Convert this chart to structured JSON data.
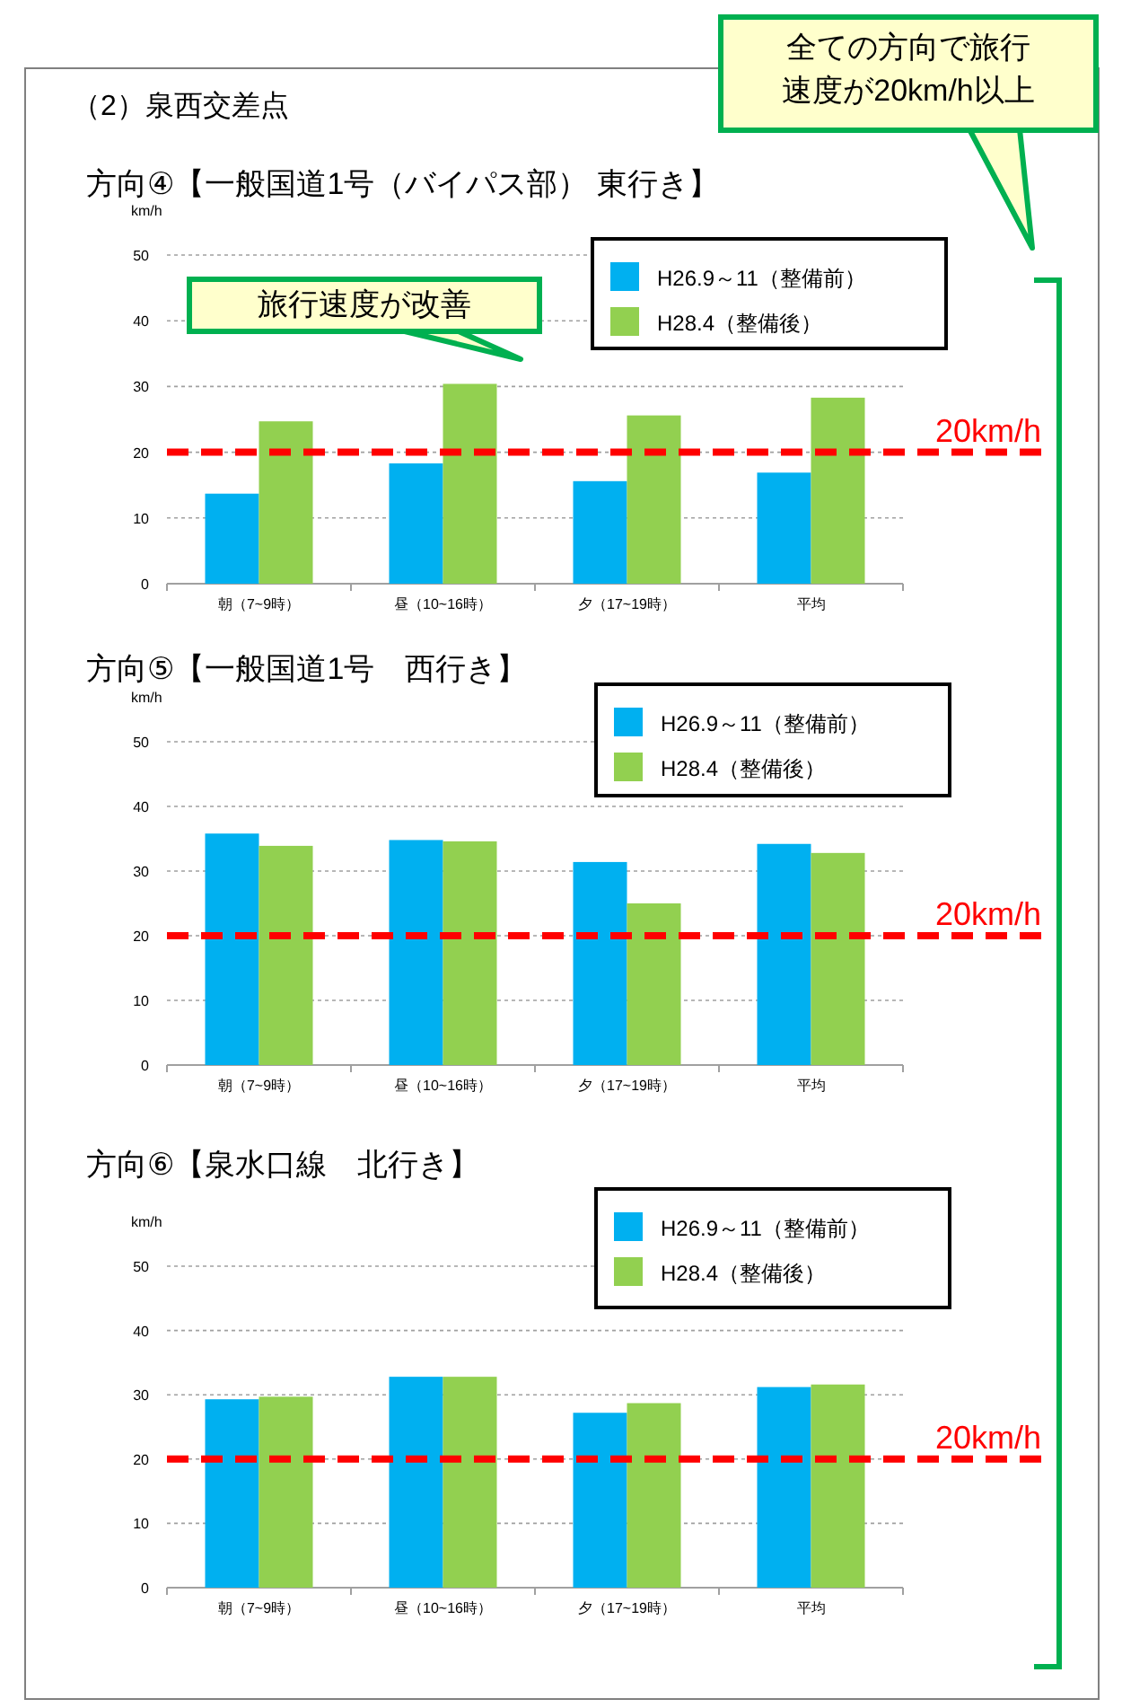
{
  "chart_data": [
    {
      "type": "bar",
      "title": "方向④【一般国道1号（バイパス部） 東行き】",
      "ylabel": "km/h",
      "categories": [
        "朝（7~9時）",
        "昼（10~16時）",
        "夕（17~19時）",
        "平均"
      ],
      "series": [
        {
          "name": "H26.9～11（整備前）",
          "color": "#00b0f0",
          "values": [
            13.7,
            18.3,
            15.6,
            16.9
          ]
        },
        {
          "name": "H28.4（整備後）",
          "color": "#92d050",
          "values": [
            24.7,
            30.4,
            25.6,
            28.3
          ]
        }
      ],
      "ylim": [
        0,
        50
      ],
      "yticks": [
        0,
        10,
        20,
        30,
        40,
        50
      ],
      "grid": "y",
      "legend": "top right",
      "ref_lines": [
        {
          "axis": "y",
          "value": 20,
          "label": "20km/h",
          "color": "#ff0000",
          "line_style": "dashed"
        }
      ],
      "annotations": [
        "（2）泉西交差点",
        "全ての方向で旅行速度が20km/h以上",
        "旅行速度が改善"
      ]
    },
    {
      "type": "bar",
      "title": "方向⑤【一般国道1号　西行き】",
      "ylabel": "km/h",
      "categories": [
        "朝（7~9時）",
        "昼（10~16時）",
        "夕（17~19時）",
        "平均"
      ],
      "series": [
        {
          "name": "H26.9～11（整備前）",
          "color": "#00b0f0",
          "values": [
            35.8,
            34.8,
            31.4,
            34.2
          ]
        },
        {
          "name": "H28.4（整備後）",
          "color": "#92d050",
          "values": [
            33.9,
            34.6,
            25.0,
            32.8
          ]
        }
      ],
      "ylim": [
        0,
        50
      ],
      "yticks": [
        0,
        10,
        20,
        30,
        40,
        50
      ],
      "grid": "y",
      "legend": "top right",
      "ref_lines": [
        {
          "axis": "y",
          "value": 20,
          "label": "20km/h",
          "color": "#ff0000",
          "line_style": "dashed"
        }
      ]
    },
    {
      "type": "bar",
      "title": "方向⑥【泉水口線　北行き】",
      "ylabel": "km/h",
      "categories": [
        "朝（7~9時）",
        "昼（10~16時）",
        "夕（17~19時）",
        "平均"
      ],
      "series": [
        {
          "name": "H26.9～11（整備前）",
          "color": "#00b0f0",
          "values": [
            29.3,
            32.8,
            27.2,
            31.2
          ]
        },
        {
          "name": "H28.4（整備後）",
          "color": "#92d050",
          "values": [
            29.7,
            32.8,
            28.7,
            31.6
          ]
        }
      ],
      "ylim": [
        0,
        50
      ],
      "yticks": [
        0,
        10,
        20,
        30,
        40,
        50
      ],
      "grid": "y",
      "legend": "top right",
      "ref_lines": [
        {
          "axis": "y",
          "value": 20,
          "label": "20km/h",
          "color": "#ff0000",
          "line_style": "dashed"
        }
      ]
    }
  ]
}
